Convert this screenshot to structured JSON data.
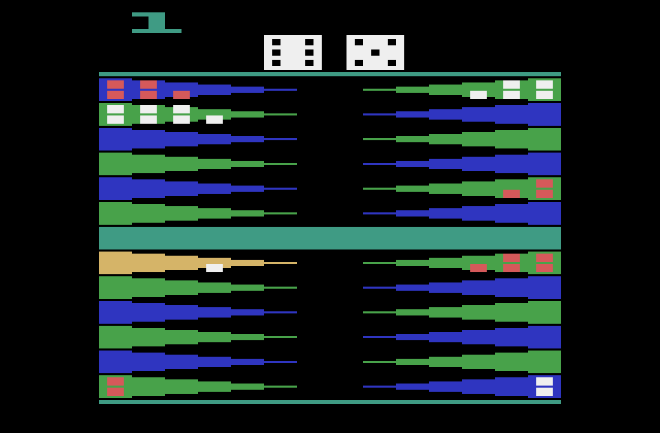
{
  "game": {
    "player_indicator": {
      "value": 1,
      "color": "#3f9b84"
    },
    "dice": [
      6,
      5
    ],
    "colors": {
      "frame": "#3f9b84",
      "bar": "#3f9b84",
      "blue": "#2f35c0",
      "green": "#48a24a",
      "gold": "#d5b468",
      "red_checker": "#d5595a",
      "white_checker": "#efefef",
      "die_face": "#efefef",
      "pip": "#000000"
    },
    "top_board": {
      "rows": [
        {
          "left_color": "blue",
          "right_color": "green"
        },
        {
          "left_color": "green",
          "right_color": "blue"
        },
        {
          "left_color": "blue",
          "right_color": "green"
        },
        {
          "left_color": "green",
          "right_color": "blue"
        },
        {
          "left_color": "blue",
          "right_color": "green"
        },
        {
          "left_color": "green",
          "right_color": "blue"
        }
      ]
    },
    "bottom_board": {
      "rows": [
        {
          "left_color": "gold",
          "right_color": "green"
        },
        {
          "left_color": "green",
          "right_color": "blue"
        },
        {
          "left_color": "blue",
          "right_color": "green"
        },
        {
          "left_color": "green",
          "right_color": "blue"
        },
        {
          "left_color": "blue",
          "right_color": "green"
        },
        {
          "left_color": "green",
          "right_color": "blue"
        }
      ]
    },
    "checkers": [
      {
        "half": "top",
        "row": 0,
        "side": "left",
        "column": 0,
        "count": 2,
        "color": "red_checker"
      },
      {
        "half": "top",
        "row": 0,
        "side": "left",
        "column": 1,
        "count": 2,
        "color": "red_checker"
      },
      {
        "half": "top",
        "row": 0,
        "side": "left",
        "column": 2,
        "count": 1,
        "color": "red_checker"
      },
      {
        "half": "top",
        "row": 0,
        "side": "right",
        "column": 0,
        "count": 2,
        "color": "white_checker"
      },
      {
        "half": "top",
        "row": 0,
        "side": "right",
        "column": 1,
        "count": 2,
        "color": "white_checker"
      },
      {
        "half": "top",
        "row": 0,
        "side": "right",
        "column": 2,
        "count": 1,
        "color": "white_checker"
      },
      {
        "half": "top",
        "row": 1,
        "side": "left",
        "column": 0,
        "count": 2,
        "color": "white_checker"
      },
      {
        "half": "top",
        "row": 1,
        "side": "left",
        "column": 1,
        "count": 2,
        "color": "white_checker"
      },
      {
        "half": "top",
        "row": 1,
        "side": "left",
        "column": 2,
        "count": 2,
        "color": "white_checker"
      },
      {
        "half": "top",
        "row": 1,
        "side": "left",
        "column": 3,
        "count": 1,
        "color": "white_checker"
      },
      {
        "half": "top",
        "row": 4,
        "side": "right",
        "column": 0,
        "count": 2,
        "color": "red_checker"
      },
      {
        "half": "top",
        "row": 4,
        "side": "right",
        "column": 1,
        "count": 1,
        "color": "red_checker"
      },
      {
        "half": "bottom",
        "row": 0,
        "side": "left",
        "column": 3,
        "count": 1,
        "color": "white_checker"
      },
      {
        "half": "bottom",
        "row": 0,
        "side": "right",
        "column": 0,
        "count": 2,
        "color": "red_checker"
      },
      {
        "half": "bottom",
        "row": 0,
        "side": "right",
        "column": 1,
        "count": 2,
        "color": "red_checker"
      },
      {
        "half": "bottom",
        "row": 0,
        "side": "right",
        "column": 2,
        "count": 1,
        "color": "red_checker"
      },
      {
        "half": "bottom",
        "row": 5,
        "side": "left",
        "column": 0,
        "count": 2,
        "color": "red_checker"
      },
      {
        "half": "bottom",
        "row": 5,
        "side": "right",
        "column": 0,
        "count": 2,
        "color": "white_checker"
      }
    ]
  }
}
